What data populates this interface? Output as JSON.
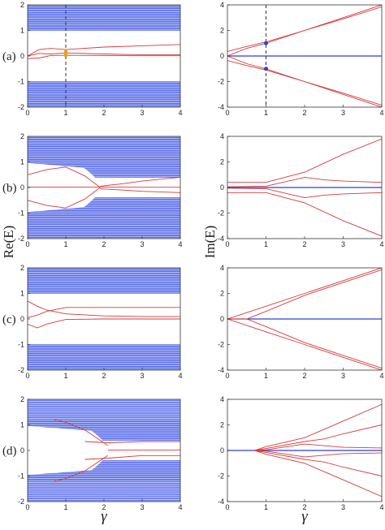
{
  "figure": {
    "ylabel_left": "Re(E)",
    "ylabel_right": "Im(E)",
    "xlabel": "γ"
  },
  "colors": {
    "bulk": "#2a3fe0",
    "edge": "#d63a3a",
    "marker": "#e8a317",
    "marker_im": "#2a3fe0"
  },
  "chart_data": [
    {
      "panel": "(a)",
      "column": "left",
      "type": "line",
      "xlabel": "",
      "ylabel": "Re(E)",
      "xlim": [
        0,
        4
      ],
      "ylim": [
        -2,
        2
      ],
      "xticks": [
        "0",
        "1",
        "2",
        "3",
        "4"
      ],
      "yticks": [
        "-2",
        "-1",
        "0",
        "1",
        "2"
      ],
      "bulk_bands": [
        [
          1,
          2
        ],
        [
          -2,
          -1
        ]
      ],
      "vline_x": 1,
      "marker": {
        "x": 1,
        "y": 0.1
      },
      "series": [
        {
          "x": [
            0,
            0.3,
            0.6,
            1,
            2,
            3,
            4
          ],
          "y": [
            0,
            0.25,
            0.3,
            0.25,
            0.35,
            0.4,
            0.45
          ]
        },
        {
          "x": [
            0,
            0.3,
            0.6,
            1,
            2,
            3,
            4
          ],
          "y": [
            0,
            0.1,
            0.08,
            0.12,
            0.08,
            0.05,
            0.05
          ]
        },
        {
          "x": [
            0,
            0.3,
            0.6,
            1,
            2,
            3,
            4
          ],
          "y": [
            -0.1,
            -0.08,
            0.02,
            0.03,
            0.02,
            0.01,
            0.01
          ]
        }
      ]
    },
    {
      "panel": "(a)",
      "column": "right",
      "type": "line",
      "xlabel": "",
      "ylabel": "Im(E)",
      "xlim": [
        0,
        4
      ],
      "ylim": [
        -4,
        4
      ],
      "xticks": [
        "0",
        "1",
        "2",
        "3",
        "4"
      ],
      "yticks": [
        "-4",
        "-2",
        "0",
        "2",
        "4"
      ],
      "hline_y": 0,
      "vline_x": 1,
      "markers": [
        {
          "x": 1,
          "y": 1
        },
        {
          "x": 1,
          "y": -1
        }
      ],
      "series": [
        {
          "x": [
            0,
            0.5,
            1,
            2,
            3,
            4
          ],
          "y": [
            0,
            0.6,
            1.0,
            2.0,
            3.0,
            4.0
          ]
        },
        {
          "x": [
            0,
            0.5,
            1,
            2,
            3,
            4
          ],
          "y": [
            0.35,
            0.75,
            1.1,
            2.0,
            2.9,
            3.85
          ]
        },
        {
          "x": [
            0,
            0.5,
            1,
            2,
            3,
            4
          ],
          "y": [
            0,
            -0.6,
            -1.0,
            -2.0,
            -3.0,
            -4.0
          ]
        },
        {
          "x": [
            0,
            0.5,
            1,
            2,
            3,
            4
          ],
          "y": [
            -0.35,
            -0.75,
            -1.1,
            -2.0,
            -2.9,
            -3.85
          ]
        }
      ]
    },
    {
      "panel": "(b)",
      "column": "left",
      "type": "line",
      "xlabel": "",
      "ylabel": "Re(E)",
      "xlim": [
        0,
        4
      ],
      "ylim": [
        -2,
        2
      ],
      "xticks": [
        "0",
        "1",
        "2",
        "3",
        "4"
      ],
      "yticks": [
        "-2",
        "-1",
        "0",
        "1",
        "2"
      ],
      "bulk_bands": [
        [
          0.4,
          2
        ],
        [
          -2,
          -0.4
        ]
      ],
      "gap_closing_x": 1.9,
      "series": [
        {
          "x": [
            0,
            0.5,
            1,
            1.5,
            1.9
          ],
          "y": [
            0.5,
            0.7,
            0.8,
            0.45,
            0.0
          ]
        },
        {
          "x": [
            0,
            0.5,
            1,
            1.5,
            1.9
          ],
          "y": [
            -0.5,
            -0.7,
            -0.8,
            -0.45,
            0.0
          ]
        },
        {
          "x": [
            1.9,
            2.5,
            3,
            4
          ],
          "y": [
            0.05,
            0.15,
            0.25,
            0.4
          ]
        },
        {
          "x": [
            1.9,
            2.5,
            3,
            4
          ],
          "y": [
            -0.05,
            -0.1,
            -0.15,
            -0.2
          ]
        },
        {
          "x": [
            0,
            1,
            2,
            3,
            4
          ],
          "y": [
            0.02,
            0.02,
            0.02,
            0.01,
            0.01
          ]
        }
      ]
    },
    {
      "panel": "(b)",
      "column": "right",
      "type": "line",
      "xlabel": "",
      "ylabel": "Im(E)",
      "xlim": [
        0,
        4
      ],
      "ylim": [
        -4,
        4
      ],
      "xticks": [
        "0",
        "1",
        "2",
        "3",
        "4"
      ],
      "yticks": [
        "-4",
        "-2",
        "0",
        "2",
        "4"
      ],
      "hline_y": 0,
      "series": [
        {
          "x": [
            0,
            1,
            2,
            3,
            4
          ],
          "y": [
            0.4,
            0.4,
            1.2,
            2.6,
            3.8
          ]
        },
        {
          "x": [
            0,
            1,
            2,
            3,
            4
          ],
          "y": [
            -0.4,
            -0.4,
            -1.2,
            -2.6,
            -3.8
          ]
        },
        {
          "x": [
            0,
            1,
            2,
            2.5,
            3,
            4
          ],
          "y": [
            0.05,
            0.1,
            0.8,
            0.6,
            0.5,
            0.4
          ]
        },
        {
          "x": [
            0,
            1,
            2,
            2.5,
            3,
            4
          ],
          "y": [
            -0.05,
            -0.1,
            -0.8,
            -0.6,
            -0.5,
            -0.4
          ]
        }
      ]
    },
    {
      "panel": "(c)",
      "column": "left",
      "type": "line",
      "xlabel": "",
      "ylabel": "Re(E)",
      "xlim": [
        0,
        4
      ],
      "ylim": [
        -2,
        2
      ],
      "xticks": [
        "0",
        "1",
        "2",
        "3",
        "4"
      ],
      "yticks": [
        "-2",
        "-1",
        "0",
        "1",
        "2"
      ],
      "bulk_bands": [
        [
          1,
          2
        ],
        [
          -2,
          -1
        ]
      ],
      "series": [
        {
          "x": [
            0,
            0.25,
            0.5,
            1,
            2,
            3,
            4
          ],
          "y": [
            0.7,
            0.5,
            0.35,
            0.2,
            0.12,
            0.1,
            0.1
          ]
        },
        {
          "x": [
            0,
            0.25,
            0.5,
            1,
            2,
            3,
            4
          ],
          "y": [
            0.05,
            0.15,
            0.3,
            0.45,
            0.45,
            0.45,
            0.45
          ]
        },
        {
          "x": [
            0,
            0.25,
            0.5,
            1,
            2,
            3,
            4
          ],
          "y": [
            -0.2,
            -0.35,
            -0.2,
            -0.02,
            0,
            0,
            0
          ]
        }
      ]
    },
    {
      "panel": "(c)",
      "column": "right",
      "type": "line",
      "xlabel": "",
      "ylabel": "Im(E)",
      "xlim": [
        0,
        4
      ],
      "ylim": [
        -4,
        4
      ],
      "xticks": [
        "0",
        "1",
        "2",
        "3",
        "4"
      ],
      "yticks": [
        "-4",
        "-2",
        "0",
        "2",
        "4"
      ],
      "hline_y": 0,
      "series": [
        {
          "x": [
            0,
            1,
            2,
            3,
            4
          ],
          "y": [
            0,
            1.0,
            2.0,
            3.0,
            4.0
          ]
        },
        {
          "x": [
            0,
            1,
            2,
            3,
            4
          ],
          "y": [
            0,
            -1.0,
            -2.0,
            -3.0,
            -4.0
          ]
        },
        {
          "x": [
            0,
            0.5,
            1,
            2,
            3,
            4
          ],
          "y": [
            0,
            0,
            0.6,
            1.85,
            2.85,
            3.85
          ]
        },
        {
          "x": [
            0,
            0.5,
            1,
            2,
            3,
            4
          ],
          "y": [
            0,
            0,
            -0.6,
            -1.85,
            -2.85,
            -3.85
          ]
        }
      ]
    },
    {
      "panel": "(d)",
      "column": "left",
      "type": "line",
      "xlabel": "γ",
      "ylabel": "Re(E)",
      "xlim": [
        0,
        4
      ],
      "ylim": [
        -2,
        2
      ],
      "xticks": [
        "0",
        "1",
        "2",
        "3",
        "4"
      ],
      "yticks": [
        "-2",
        "-1",
        "0",
        "1",
        "2"
      ],
      "bulk_bands": [
        [
          0.4,
          2
        ],
        [
          -2,
          -0.4
        ]
      ],
      "gap_closing_x": 2.1,
      "series": [
        {
          "x": [
            0.7,
            1,
            1.5,
            2.1
          ],
          "y": [
            1.2,
            1.1,
            0.8,
            0.2
          ]
        },
        {
          "x": [
            0.7,
            1,
            1.5,
            2.1
          ],
          "y": [
            -1.2,
            -1.1,
            -0.8,
            -0.2
          ]
        },
        {
          "x": [
            1.5,
            2.1,
            3,
            4
          ],
          "y": [
            0.35,
            0.3,
            0.35,
            0.35
          ]
        },
        {
          "x": [
            1.5,
            2.1,
            3,
            4
          ],
          "y": [
            -0.35,
            -0.3,
            -0.2,
            -0.2
          ]
        },
        {
          "x": [
            2.1,
            3,
            4
          ],
          "y": [
            0.02,
            0.02,
            0.02
          ]
        }
      ]
    },
    {
      "panel": "(d)",
      "column": "right",
      "type": "line",
      "xlabel": "γ",
      "ylabel": "Im(E)",
      "xlim": [
        0,
        4
      ],
      "ylim": [
        -4,
        4
      ],
      "xticks": [
        "0",
        "1",
        "2",
        "3",
        "4"
      ],
      "yticks": [
        "-4",
        "-2",
        "0",
        "2",
        "4"
      ],
      "hline_y": 0,
      "series": [
        {
          "x": [
            0.7,
            1,
            2,
            3,
            4
          ],
          "y": [
            0,
            0.3,
            1.0,
            2.3,
            3.6
          ]
        },
        {
          "x": [
            0.7,
            1,
            2,
            3,
            4
          ],
          "y": [
            0,
            -0.3,
            -1.0,
            -2.3,
            -3.6
          ]
        },
        {
          "x": [
            0.7,
            1,
            2,
            2.5,
            3,
            4
          ],
          "y": [
            0,
            0.15,
            0.7,
            0.9,
            1.3,
            2.0
          ]
        },
        {
          "x": [
            0.7,
            1,
            2,
            2.5,
            3,
            4
          ],
          "y": [
            0,
            -0.15,
            -0.7,
            -0.9,
            -1.3,
            -2.0
          ]
        },
        {
          "x": [
            0.7,
            1,
            2,
            3,
            4
          ],
          "y": [
            0,
            0.05,
            0.5,
            0.25,
            0.2
          ]
        },
        {
          "x": [
            0.7,
            1,
            2,
            3,
            4
          ],
          "y": [
            0,
            -0.05,
            -0.5,
            -0.25,
            -0.2
          ]
        }
      ]
    }
  ]
}
